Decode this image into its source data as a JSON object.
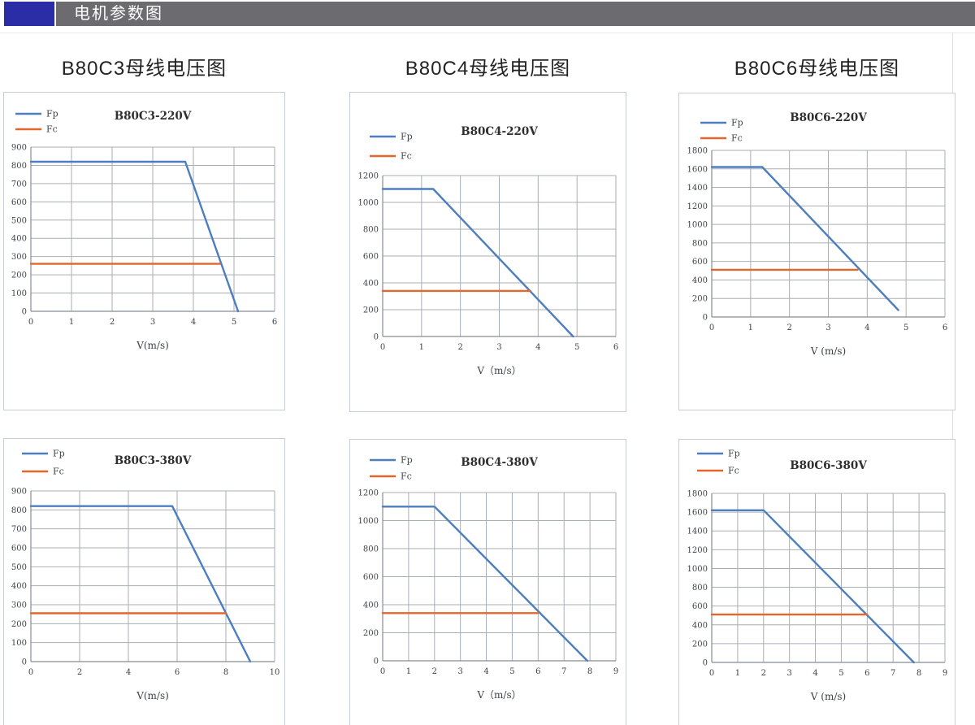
{
  "header": {
    "title": "电机参数图",
    "accent_color": "#2b2da6",
    "bar_color": "#6b6b70",
    "text_color": "#ffffff"
  },
  "section_titles": [
    {
      "label": "B80C3母线电压图"
    },
    {
      "label": "B80C4母线电压图"
    },
    {
      "label": "B80C6母线电压图"
    }
  ],
  "palette": {
    "fp_line": "#4d7ebf",
    "fc_line": "#e4662b",
    "grid": "#a9aeb6",
    "axis": "#878d95",
    "tick_text": "#3f4347",
    "chart_title_text": "#2f2f2f",
    "panel_border": "#c8ccd6"
  },
  "chart_data": [
    {
      "type": "line",
      "title": "B80C3-220V",
      "xlabel": "V(m/s)",
      "legend": [
        "Fp",
        "Fc"
      ],
      "legend_position": "top-left",
      "grid": true,
      "xlim": [
        0,
        6
      ],
      "ylim": [
        0,
        900
      ],
      "xticks": [
        0,
        1,
        2,
        3,
        4,
        5,
        6
      ],
      "yticks": [
        0,
        100,
        200,
        300,
        400,
        500,
        600,
        700,
        800,
        900
      ],
      "series": [
        {
          "name": "Fp",
          "color": "#4d7ebf",
          "points": [
            [
              0,
              820
            ],
            [
              3.8,
              820
            ],
            [
              5.1,
              0
            ]
          ]
        },
        {
          "name": "Fc",
          "color": "#e4662b",
          "points": [
            [
              0,
              260
            ],
            [
              4.65,
              260
            ]
          ]
        }
      ]
    },
    {
      "type": "line",
      "title": "B80C4-220V",
      "xlabel": "V（m/s）",
      "legend": [
        "Fp",
        "Fc"
      ],
      "legend_position": "top-left",
      "grid": true,
      "xlim": [
        0,
        6
      ],
      "ylim": [
        0,
        1200
      ],
      "xticks": [
        0,
        1,
        2,
        3,
        4,
        5,
        6
      ],
      "yticks": [
        0,
        200,
        400,
        600,
        800,
        1000,
        1200
      ],
      "series": [
        {
          "name": "Fp",
          "color": "#4d7ebf",
          "points": [
            [
              0,
              1100
            ],
            [
              1.3,
              1100
            ],
            [
              4.9,
              0
            ]
          ]
        },
        {
          "name": "Fc",
          "color": "#e4662b",
          "points": [
            [
              0,
              340
            ],
            [
              3.8,
              340
            ]
          ]
        }
      ]
    },
    {
      "type": "line",
      "title": "B80C6-220V",
      "xlabel": "V (m/s)",
      "legend": [
        "Fp",
        "Fc"
      ],
      "legend_position": "top-left",
      "grid": true,
      "xlim": [
        0,
        6
      ],
      "ylim": [
        0,
        1800
      ],
      "xticks": [
        0,
        1,
        2,
        3,
        4,
        5,
        6
      ],
      "yticks": [
        0,
        200,
        400,
        600,
        800,
        1000,
        1200,
        1400,
        1600,
        1800
      ],
      "series": [
        {
          "name": "Fp",
          "color": "#4d7ebf",
          "points": [
            [
              0,
              1620
            ],
            [
              1.3,
              1620
            ],
            [
              4.8,
              75
            ]
          ]
        },
        {
          "name": "Fc",
          "color": "#e4662b",
          "points": [
            [
              0,
              510
            ],
            [
              3.75,
              510
            ]
          ]
        }
      ]
    },
    {
      "type": "line",
      "title": "B80C3-380V",
      "xlabel": "V(m/s)",
      "legend": [
        "Fp",
        "Fc"
      ],
      "legend_position": "top-left",
      "grid": true,
      "xlim": [
        0,
        10
      ],
      "ylim": [
        0,
        900
      ],
      "xticks": [
        0,
        2,
        4,
        6,
        8,
        10
      ],
      "yticks": [
        0,
        100,
        200,
        300,
        400,
        500,
        600,
        700,
        800,
        900
      ],
      "series": [
        {
          "name": "Fp",
          "color": "#4d7ebf",
          "points": [
            [
              0,
              820
            ],
            [
              5.8,
              820
            ],
            [
              9,
              0
            ]
          ]
        },
        {
          "name": "Fc",
          "color": "#e4662b",
          "points": [
            [
              0,
              255
            ],
            [
              8,
              255
            ]
          ]
        }
      ]
    },
    {
      "type": "line",
      "title": "B80C4-380V",
      "xlabel": "V（m/s）",
      "legend": [
        "Fp",
        "Fc"
      ],
      "legend_position": "top-left",
      "grid": true,
      "xlim": [
        0,
        9
      ],
      "ylim": [
        0,
        1200
      ],
      "xticks": [
        0,
        1,
        2,
        3,
        4,
        5,
        6,
        7,
        8,
        9
      ],
      "yticks": [
        0,
        200,
        400,
        600,
        800,
        1000,
        1200
      ],
      "series": [
        {
          "name": "Fp",
          "color": "#4d7ebf",
          "points": [
            [
              0,
              1100
            ],
            [
              2,
              1100
            ],
            [
              7.9,
              0
            ]
          ]
        },
        {
          "name": "Fc",
          "color": "#e4662b",
          "points": [
            [
              0,
              340
            ],
            [
              6,
              340
            ]
          ]
        }
      ]
    },
    {
      "type": "line",
      "title": "B80C6-380V",
      "xlabel": "V (m/s)",
      "legend": [
        "Fp",
        "Fc"
      ],
      "legend_position": "top-left",
      "grid": true,
      "xlim": [
        0,
        9
      ],
      "ylim": [
        0,
        1800
      ],
      "xticks": [
        0,
        1,
        2,
        3,
        4,
        5,
        6,
        7,
        8,
        9
      ],
      "yticks": [
        0,
        200,
        400,
        600,
        800,
        1000,
        1200,
        1400,
        1600,
        1800
      ],
      "series": [
        {
          "name": "Fp",
          "color": "#4d7ebf",
          "points": [
            [
              0,
              1620
            ],
            [
              2,
              1620
            ],
            [
              7.8,
              0
            ]
          ]
        },
        {
          "name": "Fc",
          "color": "#e4662b",
          "points": [
            [
              0,
              510
            ],
            [
              6,
              510
            ]
          ]
        }
      ]
    }
  ]
}
